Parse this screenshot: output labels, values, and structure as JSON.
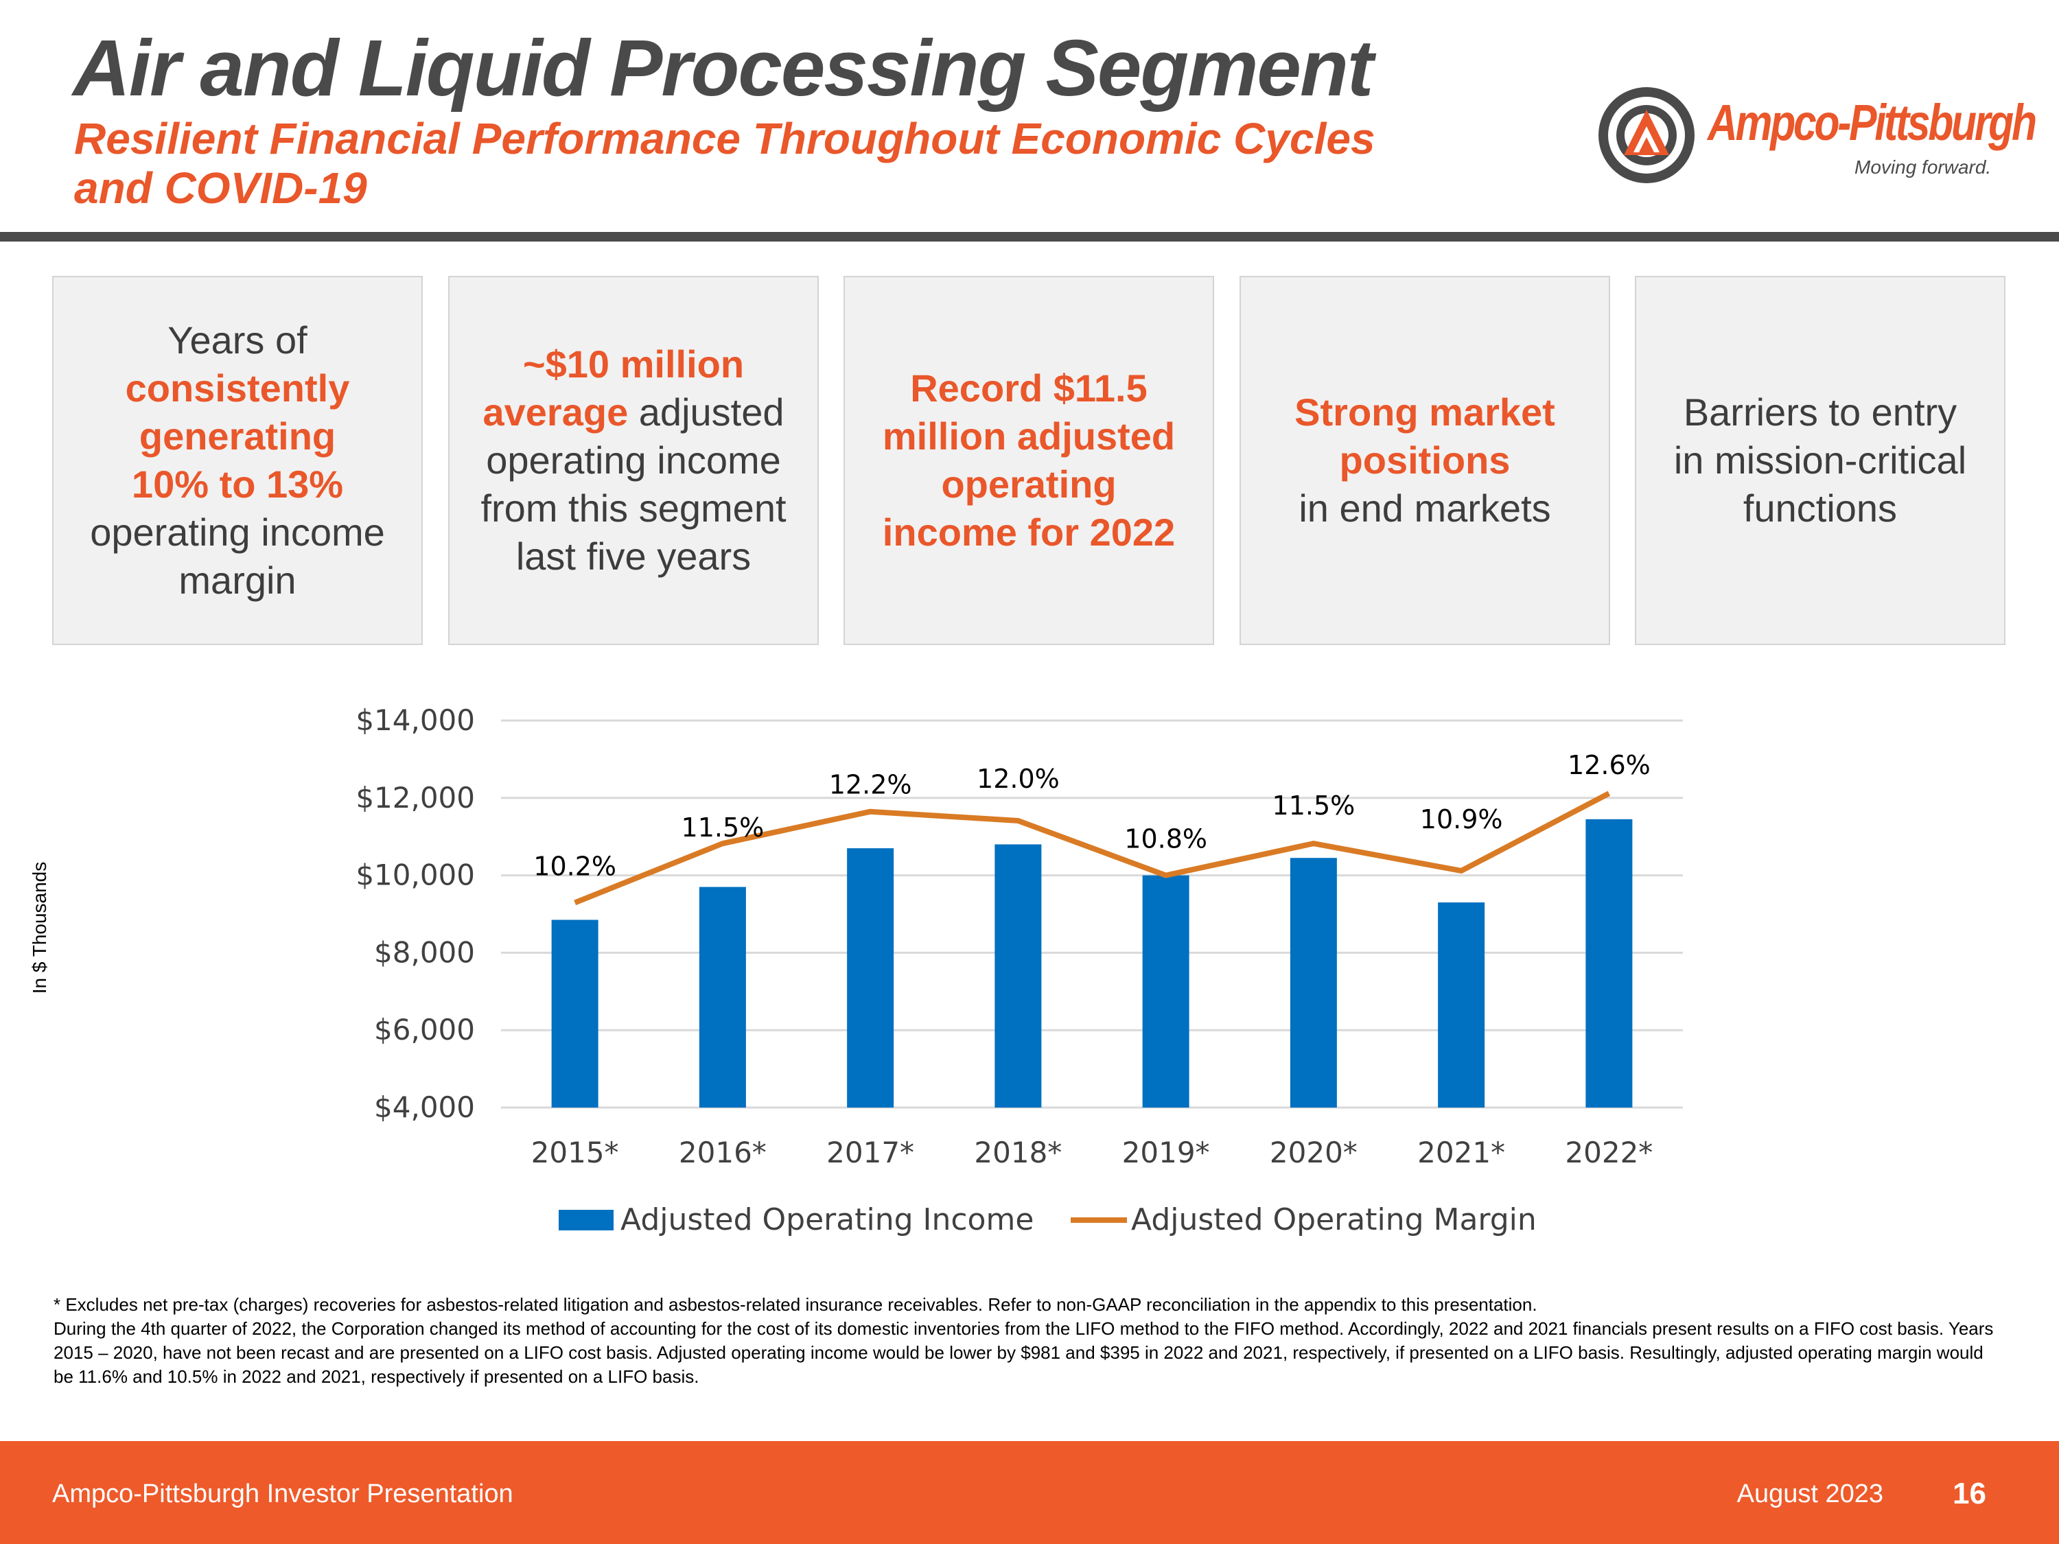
{
  "header": {
    "title": "Air and Liquid Processing Segment",
    "subtitle_line1": "Resilient Financial Performance Throughout Economic Cycles",
    "subtitle_line2": "and COVID-19"
  },
  "logo": {
    "name": "Ampco-Pittsburgh",
    "tagline": "Moving forward.",
    "icon": "ampco-emblem-icon"
  },
  "boxes": [
    {
      "lines": [
        {
          "text": "Years of",
          "hl": false
        },
        {
          "text": "consistently",
          "hl": true
        },
        {
          "text": "generating",
          "hl": true
        },
        {
          "text": "10% to 13%",
          "hl": true
        },
        {
          "text": "operating income",
          "hl": false
        },
        {
          "text": "margin",
          "hl": false
        }
      ]
    },
    {
      "lines": [
        {
          "parts": [
            {
              "text": "~$10 million",
              "hl": true
            }
          ]
        },
        {
          "parts": [
            {
              "text": "average",
              "hl": true
            },
            {
              "text": " adjusted",
              "hl": false
            }
          ]
        },
        {
          "parts": [
            {
              "text": "operating income",
              "hl": false
            }
          ]
        },
        {
          "parts": [
            {
              "text": "from this segment",
              "hl": false
            }
          ]
        },
        {
          "parts": [
            {
              "text": "last five years",
              "hl": false
            }
          ]
        }
      ]
    },
    {
      "lines": [
        {
          "text": "Record $11.5",
          "hl": true
        },
        {
          "text": "million adjusted",
          "hl": true
        },
        {
          "text": "operating",
          "hl": true
        },
        {
          "text": "income for 2022",
          "hl": true
        }
      ]
    },
    {
      "lines": [
        {
          "text": "Strong market",
          "hl": true
        },
        {
          "text": "positions",
          "hl": true
        },
        {
          "text": "in end markets",
          "hl": false
        }
      ]
    },
    {
      "lines": [
        {
          "text": "Barriers to entry",
          "hl": false
        },
        {
          "text": "in mission-critical",
          "hl": false
        },
        {
          "text": "functions",
          "hl": false
        }
      ]
    }
  ],
  "chart_data": {
    "type": "bar",
    "categories": [
      "2015*",
      "2016*",
      "2017*",
      "2018*",
      "2019*",
      "2020*",
      "2021*",
      "2022*"
    ],
    "series": [
      {
        "name": "Adjusted Operating Income",
        "kind": "bar",
        "axis": "left",
        "color": "#0070c0",
        "values": [
          8850,
          9700,
          10700,
          10800,
          10000,
          10450,
          9300,
          11450
        ]
      },
      {
        "name": "Adjusted Operating Margin",
        "kind": "line",
        "axis": "right",
        "color": "#d97b25",
        "values": [
          10.2,
          11.5,
          12.2,
          12.0,
          10.8,
          11.5,
          10.9,
          12.6
        ],
        "labels": [
          "10.2%",
          "11.5%",
          "12.2%",
          "12.0%",
          "10.8%",
          "11.5%",
          "10.9%",
          "12.6%"
        ]
      }
    ],
    "ylabel": "In $ Thousands",
    "ylim": [
      4000,
      14000
    ],
    "yticks": [
      "$4,000",
      "$6,000",
      "$8,000",
      "$10,000",
      "$12,000",
      "$14,000"
    ],
    "ytick_values": [
      4000,
      6000,
      8000,
      10000,
      12000,
      14000
    ],
    "secondary_ylim": [
      5.7,
      14.2
    ],
    "grid": true,
    "legend": "bottom"
  },
  "footnote": {
    "line1": "* Excludes net pre-tax (charges) recoveries for asbestos-related litigation and asbestos-related insurance receivables.  Refer to non-GAAP reconciliation in the appendix to this presentation.",
    "line2": "During the 4th quarter of 2022, the Corporation changed its method of accounting for the cost of its domestic inventories from the LIFO method to the FIFO method.  Accordingly, 2022 and 2021 financials present results on a FIFO cost basis. Years 2015 – 2020, have not been recast and are presented on a LIFO cost basis. Adjusted operating income would be lower by $981 and $395 in 2022 and 2021, respectively, if presented on a LIFO basis.  Resultingly, adjusted operating margin would be 11.6% and 10.5% in 2022 and 2021, respectively if presented on a LIFO basis."
  },
  "footer": {
    "left": "Ampco-Pittsburgh Investor Presentation",
    "date": "August 2023",
    "page": "16"
  },
  "colors": {
    "accent": "#e9572a",
    "title": "#4a4a4a",
    "bar": "#0070c0",
    "line": "#d97b25",
    "footer": "#ee5a2a"
  }
}
